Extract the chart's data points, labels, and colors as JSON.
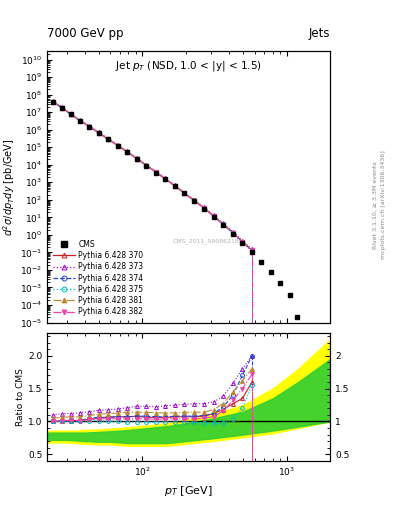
{
  "title_top": "7000 GeV pp",
  "title_right": "Jets",
  "plot_title": "Jet $p_T$ (NSD, 1.0 < |y| < 1.5)",
  "ylabel_main": "$d^2\\sigma/dp_T dy$ [pb/GeV]",
  "ylabel_ratio": "Ratio to CMS",
  "xlabel": "$p_T$ [GeV]",
  "right_label_top": "Rivet 3.1.10, ≥ 3.3M events",
  "right_label_bot": "mcplots.cern.ch [arXiv:1306.3436]",
  "watermark": "CMS_2011_S9086218",
  "xlim": [
    22,
    2000
  ],
  "ylim_main": [
    1e-05,
    30000000000.0
  ],
  "ylim_ratio": [
    0.4,
    2.35
  ],
  "cms_pt": [
    24,
    28,
    32,
    37,
    43,
    50,
    58,
    68,
    79,
    92,
    107,
    125,
    145,
    169,
    196,
    229,
    268,
    312,
    363,
    425,
    494,
    575,
    669,
    778,
    905,
    1057,
    1187
  ],
  "cms_val": [
    40000000.0,
    17000000.0,
    7500000.0,
    3300000.0,
    1500000.0,
    650000.0,
    280000.0,
    120000.0,
    52000.0,
    21000.0,
    8800,
    3600,
    1500,
    600,
    230,
    88,
    32,
    11,
    3.5,
    1.1,
    0.33,
    0.1,
    0.028,
    0.0076,
    0.0018,
    0.00035,
    2e-05
  ],
  "series": [
    {
      "label": "Pythia 6.428 370",
      "color": "#cc2222",
      "linestyle": "-",
      "marker": "^",
      "markerfill": false,
      "pt": [
        24,
        28,
        32,
        37,
        43,
        50,
        58,
        68,
        79,
        92,
        107,
        125,
        145,
        169,
        196,
        229,
        268,
        312,
        363,
        425,
        494,
        575,
        200,
        220
      ],
      "val": [
        40000000.0,
        17200000.0,
        7600000.0,
        3350000.0,
        1530000.0,
        665000.0,
        288000.0,
        125000.0,
        54000.0,
        22400.0,
        9150,
        3760,
        1545,
        628,
        242,
        93,
        34,
        12.2,
        4.1,
        1.35,
        0.41,
        0.13,
        1e-05,
        1e-05
      ],
      "ratio": [
        1.0,
        1.01,
        1.01,
        1.02,
        1.03,
        1.05,
        1.07,
        1.07,
        1.07,
        1.08,
        1.06,
        1.06,
        1.06,
        1.07,
        1.07,
        1.07,
        1.08,
        1.12,
        1.18,
        1.27,
        1.35,
        1.6,
        1.0,
        1.0
      ]
    },
    {
      "label": "Pythia 6.428 373",
      "color": "#9900cc",
      "linestyle": ":",
      "marker": "^",
      "markerfill": false,
      "pt": [
        24,
        28,
        32,
        37,
        43,
        50,
        58,
        68,
        79,
        92,
        107,
        125,
        145,
        169,
        196,
        229,
        268,
        312,
        363,
        425,
        494,
        575,
        260,
        280
      ],
      "val": [
        44000000.0,
        19000000.0,
        8300000.0,
        3600000.0,
        1650000.0,
        720000.0,
        310000.0,
        134000.0,
        58000.0,
        24000.0,
        9800,
        4000,
        1650,
        665,
        257,
        100,
        37,
        13,
        4.5,
        1.5,
        0.46,
        0.15,
        1e-05,
        1e-05
      ],
      "ratio": [
        1.1,
        1.12,
        1.12,
        1.13,
        1.15,
        1.17,
        1.18,
        1.19,
        1.21,
        1.23,
        1.23,
        1.22,
        1.24,
        1.25,
        1.26,
        1.27,
        1.27,
        1.3,
        1.38,
        1.58,
        1.8,
        2.0,
        1.0,
        1.0
      ]
    },
    {
      "label": "Pythia 6.428 374",
      "color": "#2244cc",
      "linestyle": "--",
      "marker": "o",
      "markerfill": false,
      "pt": [
        24,
        28,
        32,
        37,
        43,
        50,
        58,
        68,
        79,
        92,
        107,
        125,
        145,
        169,
        196,
        229,
        268,
        312,
        363,
        425,
        494,
        575,
        220,
        240
      ],
      "val": [
        40000000.0,
        17200000.0,
        7600000.0,
        3300000.0,
        1520000.0,
        660000.0,
        285000.0,
        124000.0,
        53500.0,
        22100.0,
        9050,
        3720,
        1520,
        617,
        238,
        92,
        34,
        12,
        4.1,
        1.35,
        0.41,
        0.13,
        1e-05,
        1e-05
      ],
      "ratio": [
        1.0,
        1.01,
        1.01,
        1.01,
        1.05,
        1.06,
        1.06,
        1.07,
        1.07,
        1.08,
        1.08,
        1.07,
        1.07,
        1.08,
        1.08,
        1.08,
        1.09,
        1.12,
        1.22,
        1.4,
        1.7,
        2.0,
        1.0,
        1.0
      ]
    },
    {
      "label": "Pythia 6.428 375",
      "color": "#00bbbb",
      "linestyle": ":",
      "marker": "o",
      "markerfill": false,
      "pt": [
        24,
        28,
        32,
        37,
        43,
        50,
        58,
        68,
        79,
        92,
        107,
        125,
        145,
        169,
        196,
        229,
        268,
        312,
        363,
        425,
        494,
        575,
        230,
        250
      ],
      "val": [
        40000000.0,
        17000000.0,
        7500000.0,
        3300000.0,
        1500000.0,
        650000.0,
        280000.0,
        121000.0,
        52000.0,
        21500.0,
        8800,
        3610,
        1480,
        600,
        230,
        88,
        32,
        11,
        3.7,
        1.2,
        0.37,
        0.12,
        1e-05,
        1e-05
      ],
      "ratio": [
        1.0,
        1.0,
        1.0,
        1.0,
        1.01,
        1.01,
        1.0,
        1.0,
        0.99,
        0.99,
        0.99,
        0.99,
        0.99,
        0.99,
        0.99,
        0.99,
        0.98,
        0.97,
        0.97,
        1.03,
        1.2,
        1.55,
        1.0,
        1.0
      ]
    },
    {
      "label": "Pythia 6.428 381",
      "color": "#bb8833",
      "linestyle": "-.",
      "marker": "^",
      "markerfill": true,
      "pt": [
        24,
        28,
        32,
        37,
        43,
        50,
        58,
        68,
        79,
        92,
        107,
        125,
        145,
        169,
        196,
        229,
        268,
        312,
        363,
        425,
        494,
        575,
        240,
        260
      ],
      "val": [
        42000000.0,
        18000000.0,
        7900000.0,
        3450000.0,
        1570000.0,
        680000.0,
        295000.0,
        128000.0,
        55000.0,
        22700.0,
        9300,
        3820,
        1560,
        632,
        244,
        94,
        35,
        12.5,
        4.3,
        1.4,
        0.43,
        0.14,
        1e-05,
        1e-05
      ],
      "ratio": [
        1.05,
        1.06,
        1.07,
        1.07,
        1.09,
        1.11,
        1.12,
        1.13,
        1.14,
        1.14,
        1.14,
        1.13,
        1.13,
        1.13,
        1.14,
        1.14,
        1.14,
        1.18,
        1.27,
        1.45,
        1.62,
        1.8,
        1.0,
        1.0
      ]
    },
    {
      "label": "Pythia 6.428 382",
      "color": "#ee44aa",
      "linestyle": "-.",
      "marker": "v",
      "markerfill": true,
      "pt": [
        24,
        28,
        32,
        37,
        43,
        50,
        58,
        68,
        79,
        92,
        107,
        125,
        145,
        169,
        196,
        229,
        268,
        312,
        363,
        425,
        494,
        575,
        210,
        230
      ],
      "val": [
        40000000.0,
        17200000.0,
        7600000.0,
        3320000.0,
        1510000.0,
        655000.0,
        283000.0,
        122000.0,
        52800.0,
        21800.0,
        8920,
        3670,
        1505,
        609,
        234,
        90,
        33,
        11.5,
        3.9,
        1.28,
        0.39,
        0.13,
        1e-05,
        1e-05
      ],
      "ratio": [
        1.0,
        1.01,
        1.02,
        1.01,
        1.03,
        1.04,
        1.04,
        1.04,
        1.04,
        1.04,
        1.04,
        1.03,
        1.04,
        1.04,
        1.04,
        1.04,
        1.05,
        1.07,
        1.16,
        1.32,
        1.5,
        1.72,
        1.0,
        1.0
      ]
    }
  ],
  "band_yellow_pt": [
    22,
    25,
    30,
    35,
    40,
    50,
    60,
    70,
    80,
    100,
    120,
    150,
    200,
    300,
    500,
    800,
    1200,
    2000
  ],
  "band_yellow_upper": [
    0.85,
    0.86,
    0.86,
    0.86,
    0.87,
    0.88,
    0.89,
    0.9,
    0.91,
    0.93,
    0.95,
    0.97,
    1.02,
    1.1,
    1.25,
    1.5,
    1.8,
    2.25
  ],
  "band_yellow_lower": [
    0.68,
    0.68,
    0.68,
    0.67,
    0.66,
    0.65,
    0.65,
    0.64,
    0.63,
    0.63,
    0.63,
    0.63,
    0.66,
    0.7,
    0.76,
    0.82,
    0.9,
    1.0
  ],
  "band_green_pt": [
    22,
    25,
    30,
    35,
    40,
    50,
    60,
    70,
    80,
    100,
    120,
    150,
    200,
    300,
    500,
    800,
    1200,
    2000
  ],
  "band_green_upper": [
    0.83,
    0.83,
    0.83,
    0.83,
    0.83,
    0.84,
    0.85,
    0.86,
    0.87,
    0.89,
    0.91,
    0.93,
    0.97,
    1.04,
    1.15,
    1.35,
    1.6,
    1.95
  ],
  "band_green_lower": [
    0.72,
    0.72,
    0.72,
    0.71,
    0.7,
    0.69,
    0.69,
    0.68,
    0.67,
    0.67,
    0.67,
    0.67,
    0.7,
    0.74,
    0.8,
    0.86,
    0.92,
    1.0
  ]
}
